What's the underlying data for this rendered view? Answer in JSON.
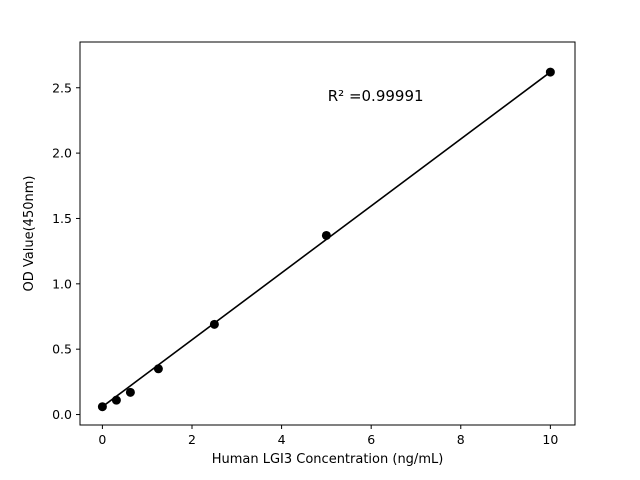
{
  "chart_data": {
    "type": "scatter",
    "title": "",
    "xlabel": "Human LGI3 Concentration (ng/mL)",
    "ylabel": "OD Value(450nm)",
    "x": [
      0,
      0.3125,
      0.625,
      1.25,
      2.5,
      5,
      10
    ],
    "y": [
      0.06,
      0.11,
      0.17,
      0.35,
      0.69,
      1.37,
      2.62
    ],
    "fit_line": {
      "x0": 0,
      "y0": 0.06,
      "x1": 10,
      "y1": 2.62
    },
    "annotation": {
      "text": "R² =0.99991",
      "x": 6.1,
      "y": 2.4
    },
    "xlim": [
      -0.5,
      10.55
    ],
    "ylim": [
      -0.08,
      2.85
    ],
    "xticks": [
      0,
      2,
      4,
      6,
      8,
      10
    ],
    "xtick_labels": [
      "0",
      "2",
      "4",
      "6",
      "8",
      "10"
    ],
    "yticks": [
      0.0,
      0.5,
      1.0,
      1.5,
      2.0,
      2.5
    ],
    "ytick_labels": [
      "0.0",
      "0.5",
      "1.0",
      "1.5",
      "2.0",
      "2.5"
    ],
    "grid": false,
    "legend": null,
    "marker_color": "#000000",
    "line_color": "#000000",
    "background_color": "#ffffff",
    "axis_color": "#000000"
  }
}
